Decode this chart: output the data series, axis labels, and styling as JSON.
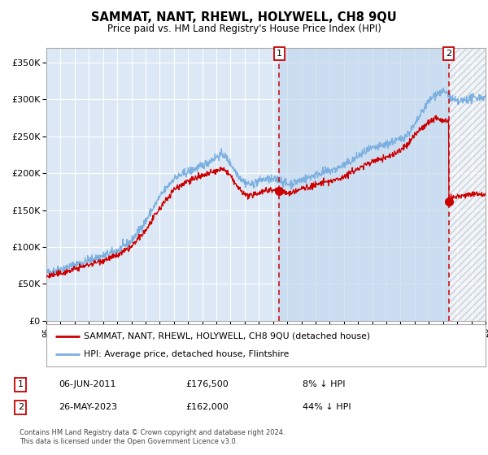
{
  "title": "SAMMAT, NANT, RHEWL, HOLYWELL, CH8 9QU",
  "subtitle": "Price paid vs. HM Land Registry's House Price Index (HPI)",
  "ylim": [
    0,
    370000
  ],
  "yticks": [
    0,
    50000,
    100000,
    150000,
    200000,
    250000,
    300000,
    350000
  ],
  "ytick_labels": [
    "£0",
    "£50K",
    "£100K",
    "£150K",
    "£200K",
    "£250K",
    "£300K",
    "£350K"
  ],
  "xstart_year": 1995,
  "xend_year": 2026,
  "marker1_date_str": "06-JUN-2011",
  "marker1_year": 2011.43,
  "marker1_price": 176500,
  "marker1_hpi_pct": "8% ↓ HPI",
  "marker2_date_str": "26-MAY-2023",
  "marker2_year": 2023.4,
  "marker2_price": 162000,
  "marker2_hpi_pct": "44% ↓ HPI",
  "legend_entry1": "SAMMAT, NANT, RHEWL, HOLYWELL, CH8 9QU (detached house)",
  "legend_entry2": "HPI: Average price, detached house, Flintshire",
  "footnote1": "Contains HM Land Registry data © Crown copyright and database right 2024.",
  "footnote2": "This data is licensed under the Open Government Licence v3.0.",
  "hpi_color": "#7aafe0",
  "price_color": "#cc0000",
  "background_plot": "#dce8f5",
  "background_fig": "#ffffff",
  "grid_color": "#ffffff",
  "dashed_line_color": "#cc0000",
  "shaded_color": "#c5d9ee",
  "hatch_color": "#c8c8c8"
}
